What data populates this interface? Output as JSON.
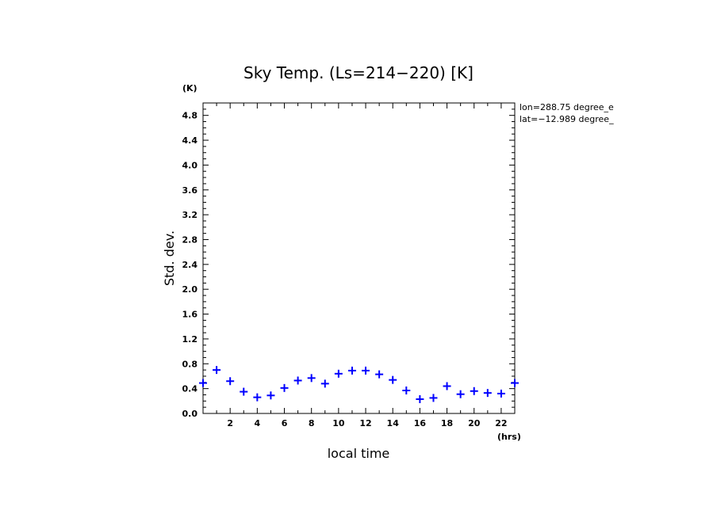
{
  "chart_data": {
    "type": "scatter",
    "title": "Sky Temp. (Ls=214−220) [K]",
    "xlabel": "local time",
    "ylabel": "Std. dev.",
    "x_unit": "(hrs)",
    "y_unit": "(K)",
    "xlim": [
      0,
      23
    ],
    "ylim": [
      0,
      5.0
    ],
    "x_ticks": [
      "2",
      "4",
      "6",
      "8",
      "10",
      "12",
      "14",
      "16",
      "18",
      "20",
      "22"
    ],
    "y_ticks": [
      "0.0",
      "0.4",
      "0.8",
      "1.2",
      "1.6",
      "2.0",
      "2.4",
      "2.8",
      "3.2",
      "3.6",
      "4.0",
      "4.4",
      "4.8"
    ],
    "grid": false,
    "marker": "+",
    "marker_color": "#0000ff",
    "annotations": [
      "lon=288.75 degree_e",
      "lat=−12.989 degree_"
    ],
    "series": [
      {
        "x": [
          0.0,
          1.0,
          2.0,
          3.0,
          4.0,
          5.0,
          6.0,
          7.0,
          8.0,
          9.0,
          10.0,
          11.0,
          12.0,
          13.0,
          14.0,
          15.0,
          16.0,
          17.0,
          18.0,
          19.0,
          20.0,
          21.0,
          22.0,
          23.0
        ],
        "y": [
          0.49,
          0.7,
          0.52,
          0.35,
          0.26,
          0.29,
          0.41,
          0.53,
          0.57,
          0.48,
          0.64,
          0.69,
          0.69,
          0.63,
          0.54,
          0.37,
          0.23,
          0.25,
          0.44,
          0.31,
          0.36,
          0.33,
          0.32,
          0.49
        ]
      }
    ]
  }
}
